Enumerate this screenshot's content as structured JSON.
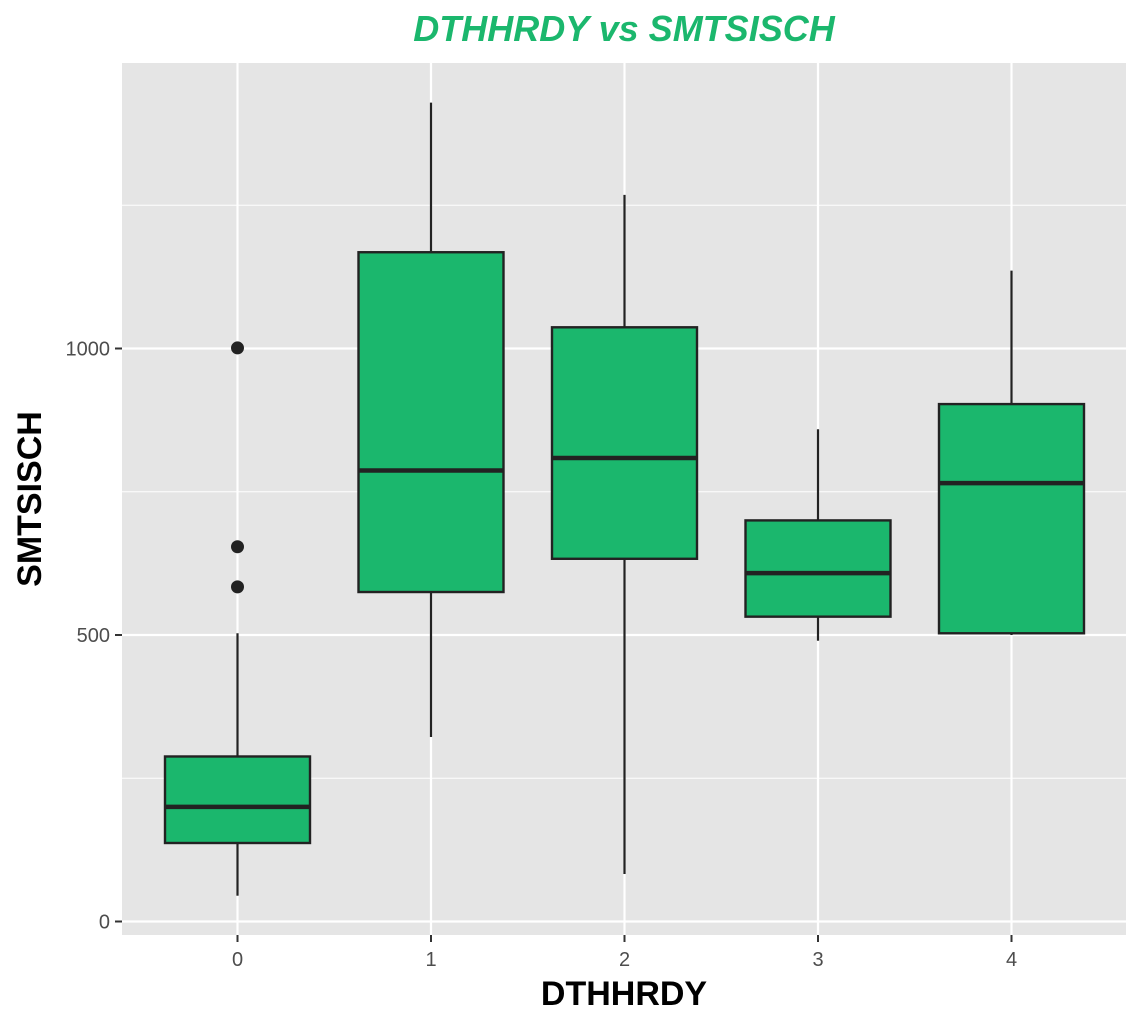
{
  "chart_data": {
    "type": "boxplot",
    "title": "DTHHRDY vs SMTSISCH",
    "xlabel": "DTHHRDY",
    "ylabel": "SMTSISCH",
    "categories": [
      "0",
      "1",
      "2",
      "3",
      "4"
    ],
    "y_ticks": [
      0,
      500,
      1000
    ],
    "ylim": [
      -25,
      1500
    ],
    "grid": true,
    "legend": "none",
    "colors": {
      "title": "#1bb76d",
      "box_fill": "#1bb76d",
      "box_stroke": "#222222",
      "panel_background": "#e5e5e5",
      "grid": "#ffffff"
    },
    "boxes": [
      {
        "category": "0",
        "whisker_low": 45,
        "q1": 137,
        "median": 200,
        "q3": 288,
        "whisker_high": 503,
        "outliers": [
          584,
          654,
          1001
        ]
      },
      {
        "category": "1",
        "whisker_low": 322,
        "q1": 575,
        "median": 787,
        "q3": 1168,
        "whisker_high": 1429,
        "outliers": []
      },
      {
        "category": "2",
        "whisker_low": 83,
        "q1": 633,
        "median": 809,
        "q3": 1037,
        "whisker_high": 1268,
        "outliers": []
      },
      {
        "category": "3",
        "whisker_low": 490,
        "q1": 532,
        "median": 608,
        "q3": 700,
        "whisker_high": 859,
        "outliers": []
      },
      {
        "category": "4",
        "whisker_low": 500,
        "q1": 503,
        "median": 765,
        "q3": 903,
        "whisker_high": 1136,
        "outliers": []
      }
    ]
  }
}
